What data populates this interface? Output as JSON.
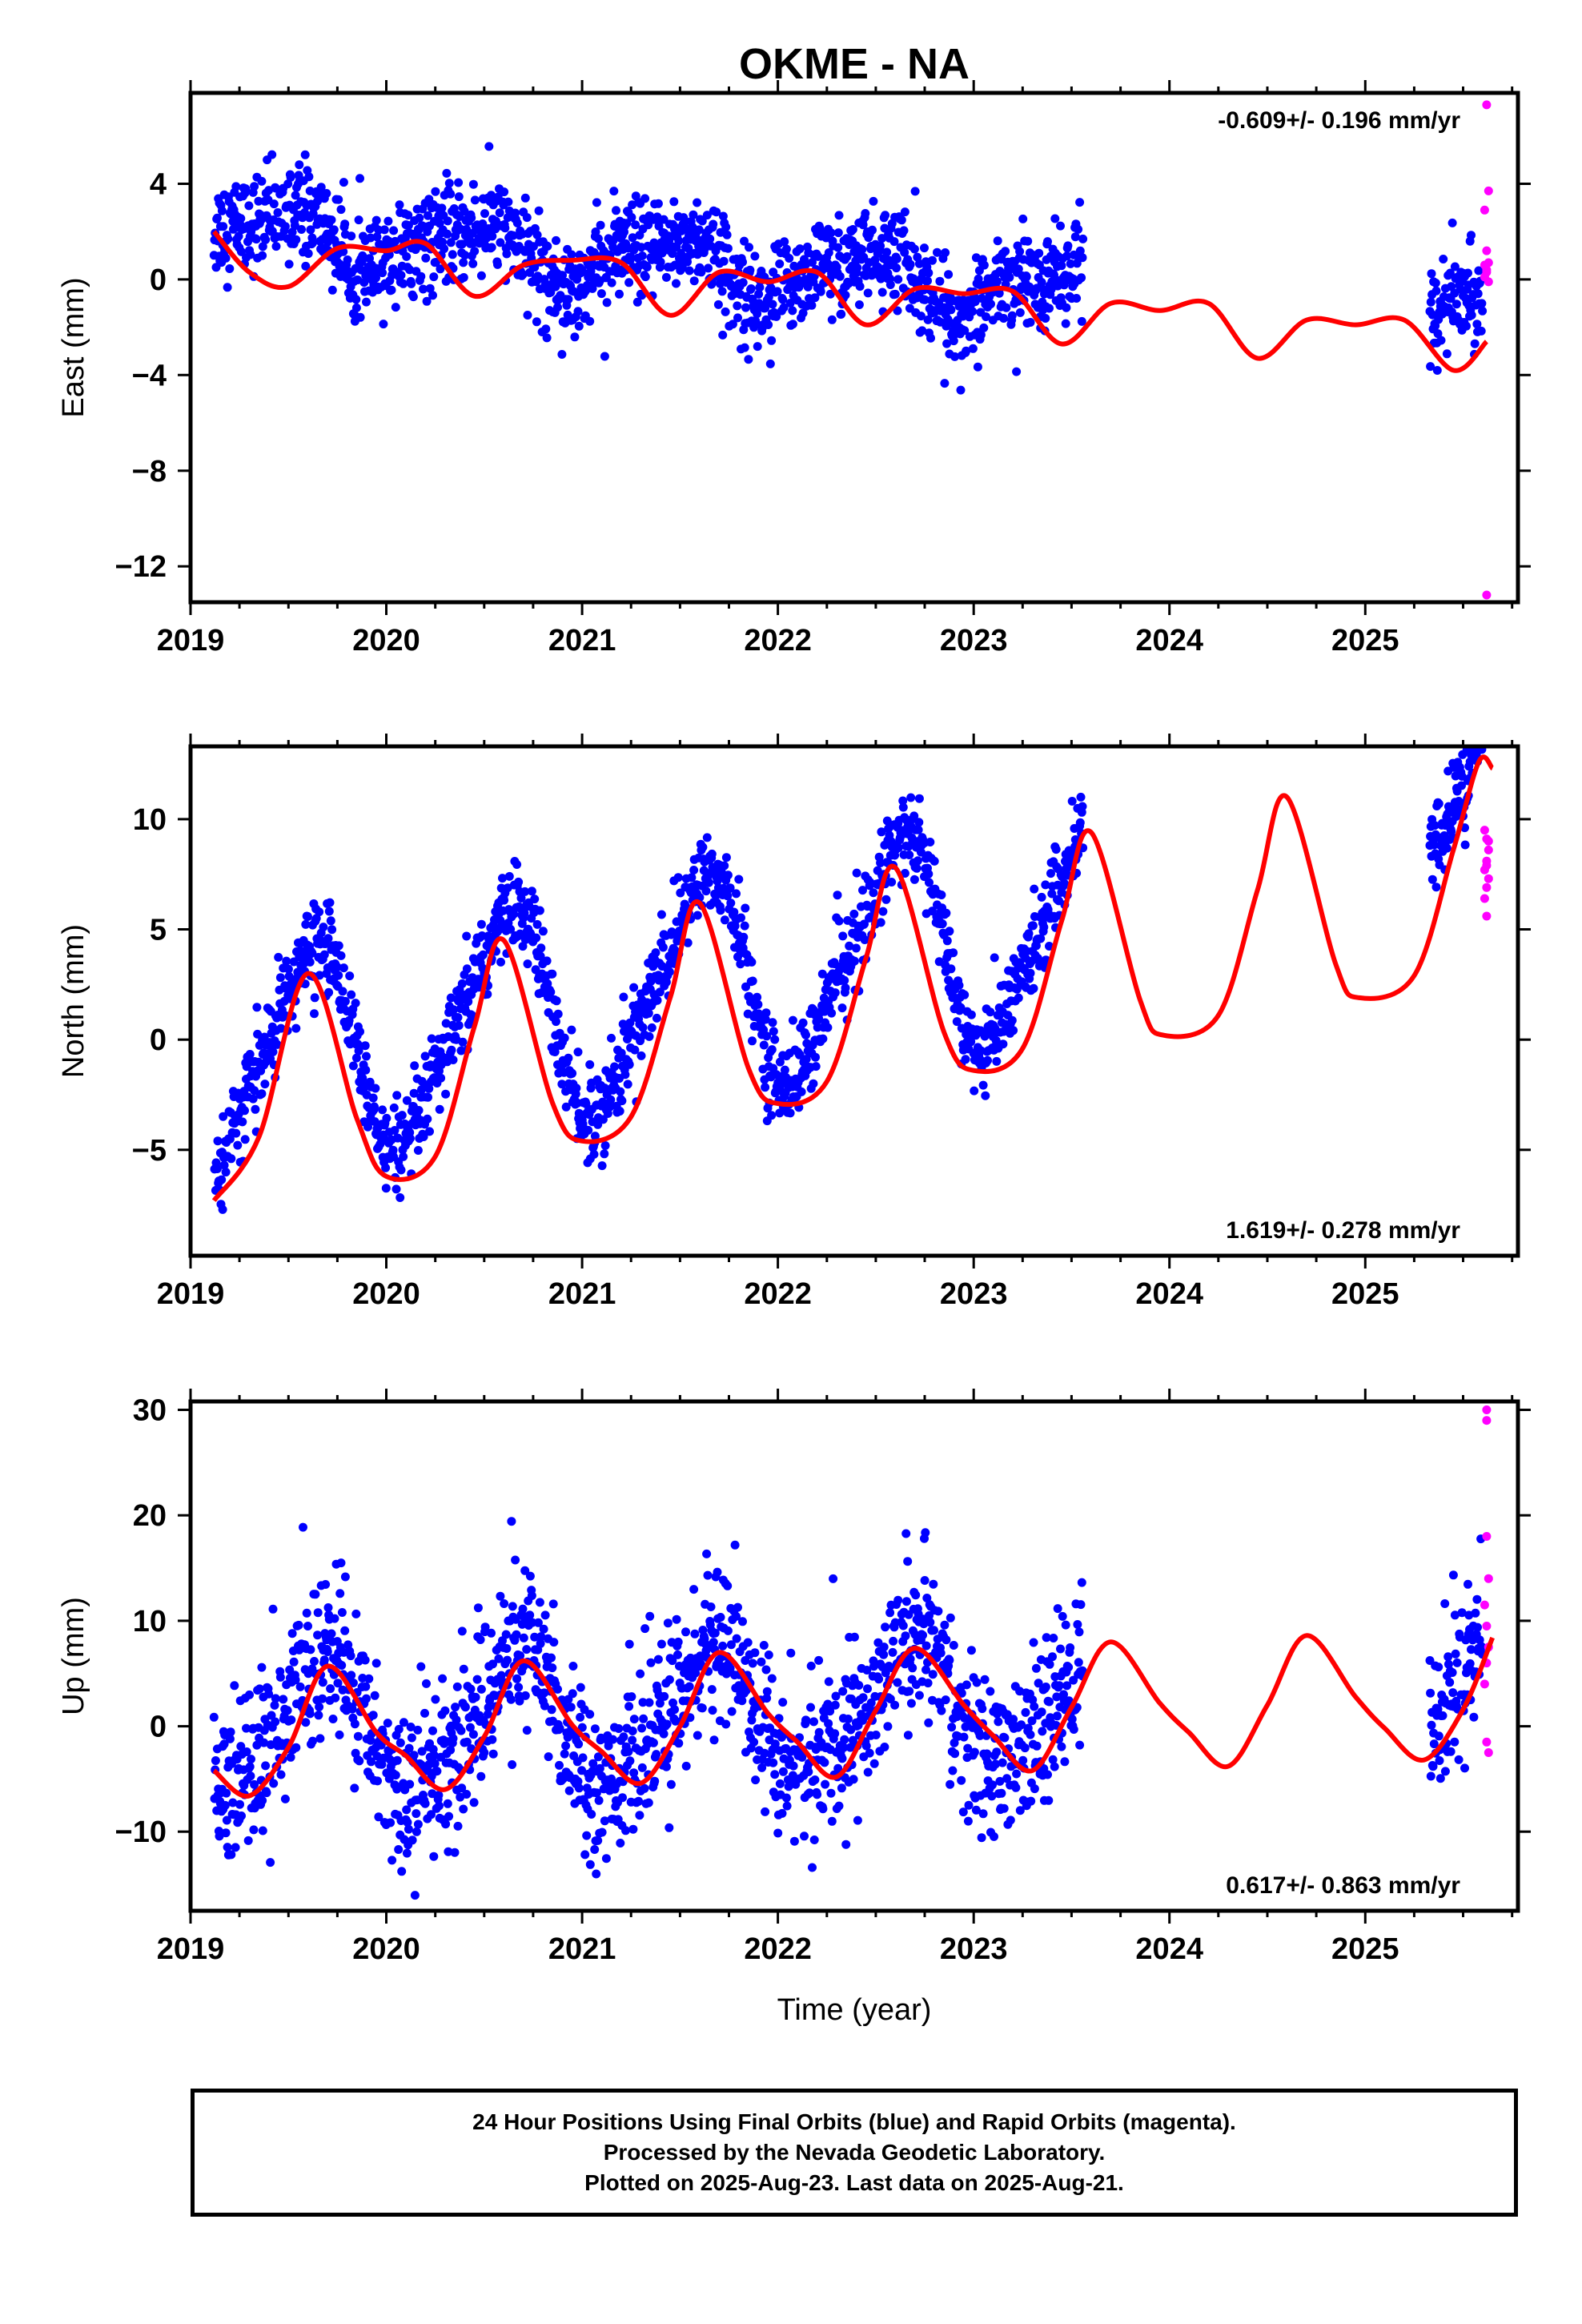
{
  "title": "OKME - NA",
  "colors": {
    "final": "#0000ff",
    "rapid": "#ff00ff",
    "fit": "#ff0000",
    "axes": "#000000"
  },
  "chart_data": [
    {
      "type": "scatter",
      "ylabel": "East (mm)",
      "xlabel": "",
      "rate_text": "-0.609+/- 0.196 mm/yr",
      "rate_position": "top-right",
      "xlim": [
        2019.0,
        2025.78
      ],
      "ylim": [
        -13.5,
        7.8
      ],
      "xticks": [
        2019,
        2020,
        2021,
        2022,
        2023,
        2024,
        2025
      ],
      "xtick_labels": [
        "2019",
        "2020",
        "2021",
        "2022",
        "2023",
        "2024",
        "2025"
      ],
      "yticks": [
        -12,
        -8,
        -4,
        0,
        4
      ],
      "ytick_labels": [
        "−12",
        "−8",
        "−4",
        "0",
        "4"
      ],
      "final": {
        "segments": [
          [
            2019.12,
            2023.56
          ],
          [
            2025.33,
            2025.6
          ]
        ],
        "baseline": 2019.0,
        "level": 2.2,
        "slope": -0.609,
        "waves": [
          [
            1.0,
            1.0,
            0.2
          ],
          [
            0.4,
            2.0,
            0.5
          ]
        ],
        "noise": 1.0
      },
      "rapid": [
        [
          2025.62,
          7.3
        ],
        [
          2025.62,
          -13.2
        ],
        [
          2025.63,
          3.7
        ],
        [
          2025.61,
          2.9
        ],
        [
          2025.62,
          1.2
        ],
        [
          2025.63,
          0.7
        ],
        [
          2025.62,
          0.4
        ],
        [
          2025.61,
          0.1
        ],
        [
          2025.63,
          -0.1
        ],
        [
          2025.62,
          0.3
        ],
        [
          2025.61,
          0.6
        ]
      ],
      "fit": [
        [
          2019.12,
          2.0
        ],
        [
          2019.3,
          0.3
        ],
        [
          2019.5,
          -0.3
        ],
        [
          2019.75,
          1.3
        ],
        [
          2020.0,
          1.2
        ],
        [
          2020.2,
          1.5
        ],
        [
          2020.45,
          -0.7
        ],
        [
          2020.7,
          0.6
        ],
        [
          2020.95,
          0.8
        ],
        [
          2021.2,
          0.7
        ],
        [
          2021.45,
          -1.5
        ],
        [
          2021.7,
          0.3
        ],
        [
          2021.95,
          -0.1
        ],
        [
          2022.2,
          0.3
        ],
        [
          2022.45,
          -1.9
        ],
        [
          2022.7,
          -0.4
        ],
        [
          2022.95,
          -0.6
        ],
        [
          2023.2,
          -0.5
        ],
        [
          2023.45,
          -2.7
        ],
        [
          2023.7,
          -1.0
        ],
        [
          2023.95,
          -1.3
        ],
        [
          2024.2,
          -1.0
        ],
        [
          2024.45,
          -3.3
        ],
        [
          2024.7,
          -1.7
        ],
        [
          2024.95,
          -1.9
        ],
        [
          2025.2,
          -1.7
        ],
        [
          2025.45,
          -3.8
        ],
        [
          2025.62,
          -2.6
        ]
      ]
    },
    {
      "type": "scatter",
      "ylabel": "North (mm)",
      "xlabel": "",
      "rate_text": "1.619+/- 0.278 mm/yr",
      "rate_position": "bottom-right",
      "xlim": [
        2019.0,
        2025.78
      ],
      "ylim": [
        -9.8,
        13.3
      ],
      "xticks": [
        2019,
        2020,
        2021,
        2022,
        2023,
        2024,
        2025
      ],
      "xtick_labels": [
        "2019",
        "2020",
        "2021",
        "2022",
        "2023",
        "2024",
        "2025"
      ],
      "yticks": [
        -5,
        0,
        5,
        10
      ],
      "ytick_labels": [
        "−5",
        "0",
        "5",
        "10"
      ],
      "final": {
        "segments": [
          [
            2019.12,
            2023.56
          ],
          [
            2025.33,
            2025.6
          ]
        ],
        "baseline": 2019.0,
        "level": -1.8,
        "slope": 1.619,
        "waves": [
          [
            4.8,
            1.0,
            0.35
          ],
          [
            1.0,
            2.0,
            0.1
          ]
        ],
        "noise": 1.0
      },
      "rapid": [
        [
          2025.61,
          9.5
        ],
        [
          2025.62,
          9.1
        ],
        [
          2025.63,
          8.6
        ],
        [
          2025.62,
          8.1
        ],
        [
          2025.61,
          7.7
        ],
        [
          2025.63,
          7.3
        ],
        [
          2025.62,
          6.9
        ],
        [
          2025.61,
          6.4
        ],
        [
          2025.62,
          5.6
        ],
        [
          2025.63,
          9.0
        ],
        [
          2025.62,
          7.9
        ]
      ],
      "fit": [
        [
          2019.12,
          -7.3
        ],
        [
          2019.35,
          -4.4
        ],
        [
          2019.6,
          3.0
        ],
        [
          2019.85,
          -3.6
        ],
        [
          2020.0,
          -6.2
        ],
        [
          2020.25,
          -5.3
        ],
        [
          2020.45,
          0.6
        ],
        [
          2020.6,
          4.5
        ],
        [
          2020.85,
          -2.9
        ],
        [
          2021.0,
          -4.6
        ],
        [
          2021.25,
          -3.5
        ],
        [
          2021.45,
          1.9
        ],
        [
          2021.6,
          6.2
        ],
        [
          2021.85,
          -1.3
        ],
        [
          2022.0,
          -2.9
        ],
        [
          2022.25,
          -1.9
        ],
        [
          2022.45,
          3.7
        ],
        [
          2022.6,
          7.8
        ],
        [
          2022.85,
          0.3
        ],
        [
          2023.0,
          -1.4
        ],
        [
          2023.25,
          -0.4
        ],
        [
          2023.45,
          5.4
        ],
        [
          2023.6,
          9.4
        ],
        [
          2023.85,
          1.8
        ],
        [
          2023.97,
          0.2
        ],
        [
          2024.25,
          1.1
        ],
        [
          2024.45,
          6.8
        ],
        [
          2024.6,
          11.0
        ],
        [
          2024.85,
          3.4
        ],
        [
          2024.97,
          1.9
        ],
        [
          2025.25,
          2.9
        ],
        [
          2025.45,
          8.6
        ],
        [
          2025.58,
          12.6
        ],
        [
          2025.65,
          12.3
        ]
      ]
    },
    {
      "type": "scatter",
      "ylabel": "Up (mm)",
      "xlabel": "Time (year)",
      "rate_text": "0.617+/- 0.863 mm/yr",
      "rate_position": "bottom-right",
      "xlim": [
        2019.0,
        2025.78
      ],
      "ylim": [
        -17.5,
        30.8
      ],
      "xticks": [
        2019,
        2020,
        2021,
        2022,
        2023,
        2024,
        2025
      ],
      "xtick_labels": [
        "2019",
        "2020",
        "2021",
        "2022",
        "2023",
        "2024",
        "2025"
      ],
      "yticks": [
        -10,
        0,
        10,
        20,
        30
      ],
      "ytick_labels": [
        "−10",
        "0",
        "10",
        "20",
        "30"
      ],
      "final": {
        "segments": [
          [
            2019.12,
            2023.56
          ],
          [
            2025.33,
            2025.6
          ]
        ],
        "baseline": 2019.0,
        "level": -0.5,
        "slope": 0.617,
        "waves": [
          [
            6.0,
            1.0,
            0.42
          ],
          [
            1.0,
            2.0,
            0.1
          ]
        ],
        "noise": 3.8
      },
      "rapid": [
        [
          2025.62,
          30.0
        ],
        [
          2025.62,
          29.0
        ],
        [
          2025.62,
          18.0
        ],
        [
          2025.63,
          14.0
        ],
        [
          2025.61,
          11.5
        ],
        [
          2025.62,
          9.5
        ],
        [
          2025.63,
          7.5
        ],
        [
          2025.62,
          6.0
        ],
        [
          2025.61,
          4.0
        ],
        [
          2025.62,
          -1.5
        ],
        [
          2025.63,
          -2.5
        ]
      ],
      "fit": [
        [
          2019.12,
          -4.2
        ],
        [
          2019.3,
          -6.6
        ],
        [
          2019.5,
          -2.0
        ],
        [
          2019.7,
          5.7
        ],
        [
          2019.95,
          -0.6
        ],
        [
          2020.1,
          -2.8
        ],
        [
          2020.3,
          -6.0
        ],
        [
          2020.5,
          -1.0
        ],
        [
          2020.7,
          6.2
        ],
        [
          2020.95,
          0.1
        ],
        [
          2021.1,
          -2.4
        ],
        [
          2021.3,
          -5.4
        ],
        [
          2021.5,
          0.0
        ],
        [
          2021.7,
          7.0
        ],
        [
          2021.95,
          1.2
        ],
        [
          2022.1,
          -1.5
        ],
        [
          2022.3,
          -4.8
        ],
        [
          2022.5,
          1.5
        ],
        [
          2022.7,
          7.4
        ],
        [
          2022.95,
          2.0
        ],
        [
          2023.1,
          -0.9
        ],
        [
          2023.3,
          -4.2
        ],
        [
          2023.5,
          1.8
        ],
        [
          2023.7,
          8.0
        ],
        [
          2023.95,
          2.2
        ],
        [
          2024.1,
          -0.6
        ],
        [
          2024.3,
          -3.8
        ],
        [
          2024.5,
          2.0
        ],
        [
          2024.7,
          8.6
        ],
        [
          2024.95,
          2.8
        ],
        [
          2025.1,
          -0.2
        ],
        [
          2025.3,
          -3.2
        ],
        [
          2025.5,
          1.6
        ],
        [
          2025.65,
          8.4
        ]
      ]
    }
  ],
  "footer": {
    "line1": "24 Hour Positions Using Final Orbits (blue) and Rapid Orbits (magenta).",
    "line2": "Processed by the Nevada Geodetic Laboratory.",
    "line3": "Plotted on 2025-Aug-23. Last data on 2025-Aug-21."
  }
}
